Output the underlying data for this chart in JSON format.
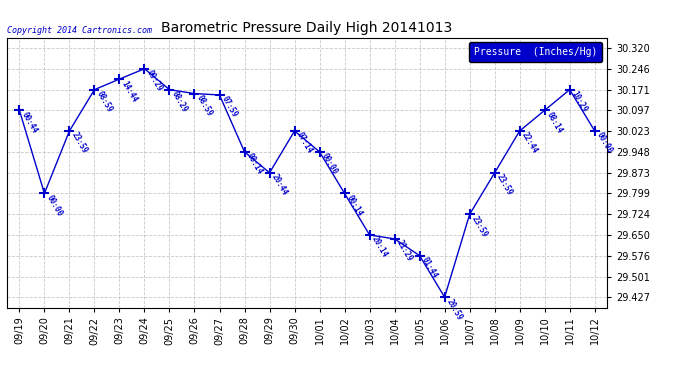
{
  "title": "Barometric Pressure Daily High 20141013",
  "copyright": "Copyright 2014 Cartronics.com",
  "legend_label": "Pressure  (Inches/Hg)",
  "dates": [
    "09/19",
    "09/20",
    "09/21",
    "09/22",
    "09/23",
    "09/24",
    "09/25",
    "09/26",
    "09/27",
    "09/28",
    "09/29",
    "09/30",
    "10/01",
    "10/02",
    "10/03",
    "10/04",
    "10/05",
    "10/06",
    "10/07",
    "10/08",
    "10/09",
    "10/10",
    "10/11",
    "10/12"
  ],
  "values": [
    30.097,
    29.799,
    30.023,
    30.171,
    30.209,
    30.246,
    30.171,
    30.157,
    30.152,
    29.948,
    29.873,
    30.023,
    29.948,
    29.799,
    29.65,
    29.636,
    29.576,
    29.427,
    29.724,
    29.873,
    30.023,
    30.097,
    30.171,
    30.023
  ],
  "time_labels": [
    "00:44",
    "00:00",
    "23:59",
    "08:59",
    "14:44",
    "09:29",
    "08:29",
    "08:59",
    "07:59",
    "08:14",
    "20:44",
    "07:14",
    "00:00",
    "00:14",
    "20:14",
    "21:29",
    "01:44",
    "20:59",
    "23:59",
    "23:59",
    "22:44",
    "08:14",
    "10:29",
    "00:00"
  ],
  "yticks": [
    30.32,
    30.246,
    30.171,
    30.097,
    30.023,
    29.948,
    29.873,
    29.799,
    29.724,
    29.65,
    29.576,
    29.501,
    29.427
  ],
  "line_color": "#0000cc",
  "marker_color": "#0000cc",
  "bg_color": "#ffffff",
  "grid_color": "#bbbbbb",
  "title_color": "#000000",
  "legend_bg": "#0000cc",
  "legend_fg": "#ffffff",
  "copyright_color": "#0000cc",
  "label_color": "#0000cc",
  "ylim_min": 29.39,
  "ylim_max": 30.358,
  "figwidth": 6.9,
  "figheight": 3.75,
  "dpi": 100
}
